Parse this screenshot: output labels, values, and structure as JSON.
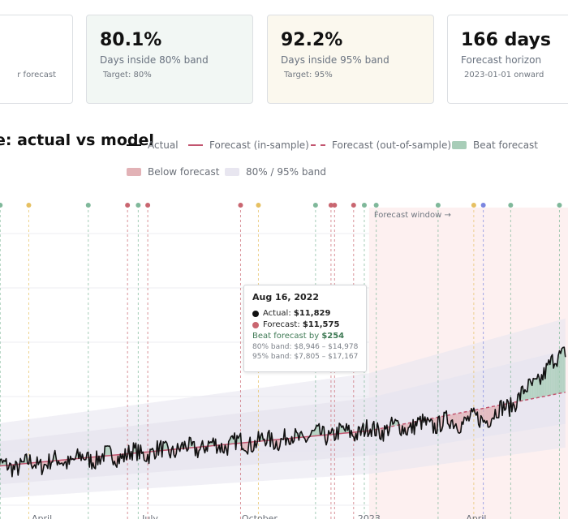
{
  "cards": [
    {
      "value": "",
      "label": "",
      "sub": "r forecast"
    },
    {
      "value": "80.1%",
      "label": "Days inside 80% band",
      "sub": "Target: 80%"
    },
    {
      "value": "92.2%",
      "label": "Days inside 95% band",
      "sub": "Target: 95%"
    },
    {
      "value": "166 days",
      "label": "Forecast horizon",
      "sub": "2023-01-01 onward"
    }
  ],
  "title": "e: actual vs model",
  "legend": [
    {
      "key": "actual",
      "label": "Actual"
    },
    {
      "key": "in_sample",
      "label": "Forecast (in-sample)"
    },
    {
      "key": "out_sample",
      "label": "Forecast (out-of-sample)"
    },
    {
      "key": "beat",
      "label": "Beat forecast"
    },
    {
      "key": "below",
      "label": "Below forecast"
    },
    {
      "key": "band",
      "label": "80% / 95% band"
    }
  ],
  "forecast_window_label": "Forecast window →",
  "tooltip": {
    "date": "Aug 16, 2022",
    "actual_label": "Actual: ",
    "actual_value": "$11,829",
    "forecast_label": "Forecast: ",
    "forecast_value": "$11,575",
    "beat_label": "Beat forecast by ",
    "beat_value": "$254",
    "band80": "80% band: $8,946 – $14,978",
    "band95": "95% band: $7,805 – $17,167"
  },
  "colors": {
    "actual": "#111111",
    "forecast": "#c2556f",
    "beat": "#a8cdb8",
    "below": "#e2b2b6",
    "band": "#e8e6f0",
    "marker_green": "#7fb89a",
    "marker_yellow": "#e6c062",
    "marker_red": "#c96670",
    "marker_blue": "#7b86e0",
    "window": "#fdf0f0"
  },
  "chart_data": {
    "type": "line",
    "x_ticks": [
      "April",
      "July",
      "October",
      "2023",
      "April"
    ],
    "forecast_start": "2023-01-01",
    "series": [
      {
        "name": "Actual",
        "start": "2022-02-18",
        "end": "2023-06-15",
        "start_value": 7500,
        "end_value": 11800,
        "final_value": 16500
      },
      {
        "name": "Forecast (in-sample)",
        "start": "2022-02-18",
        "end": "2022-12-31",
        "start_value": 7600,
        "end_value": 10300
      },
      {
        "name": "Forecast (out-of-sample)",
        "start": "2023-01-01",
        "end": "2023-06-15",
        "start_value": 10300,
        "end_value": 13200
      }
    ],
    "event_markers": [
      {
        "date": "2022-02-25",
        "type": "green"
      },
      {
        "date": "2022-03-21",
        "type": "yellow"
      },
      {
        "date": "2022-05-10",
        "type": "green"
      },
      {
        "date": "2022-06-12",
        "type": "red"
      },
      {
        "date": "2022-06-21",
        "type": "green"
      },
      {
        "date": "2022-06-29",
        "type": "red"
      },
      {
        "date": "2022-09-15",
        "type": "red"
      },
      {
        "date": "2022-09-30",
        "type": "yellow"
      },
      {
        "date": "2022-11-17",
        "type": "green"
      },
      {
        "date": "2022-11-30",
        "type": "red"
      },
      {
        "date": "2022-12-03",
        "type": "red"
      },
      {
        "date": "2022-12-19",
        "type": "red"
      },
      {
        "date": "2022-12-28",
        "type": "green"
      },
      {
        "date": "2023-01-07",
        "type": "green"
      },
      {
        "date": "2023-02-28",
        "type": "green"
      },
      {
        "date": "2023-03-30",
        "type": "yellow"
      },
      {
        "date": "2023-04-07",
        "type": "blue"
      },
      {
        "date": "2023-04-30",
        "type": "green"
      },
      {
        "date": "2023-06-10",
        "type": "green"
      }
    ]
  }
}
